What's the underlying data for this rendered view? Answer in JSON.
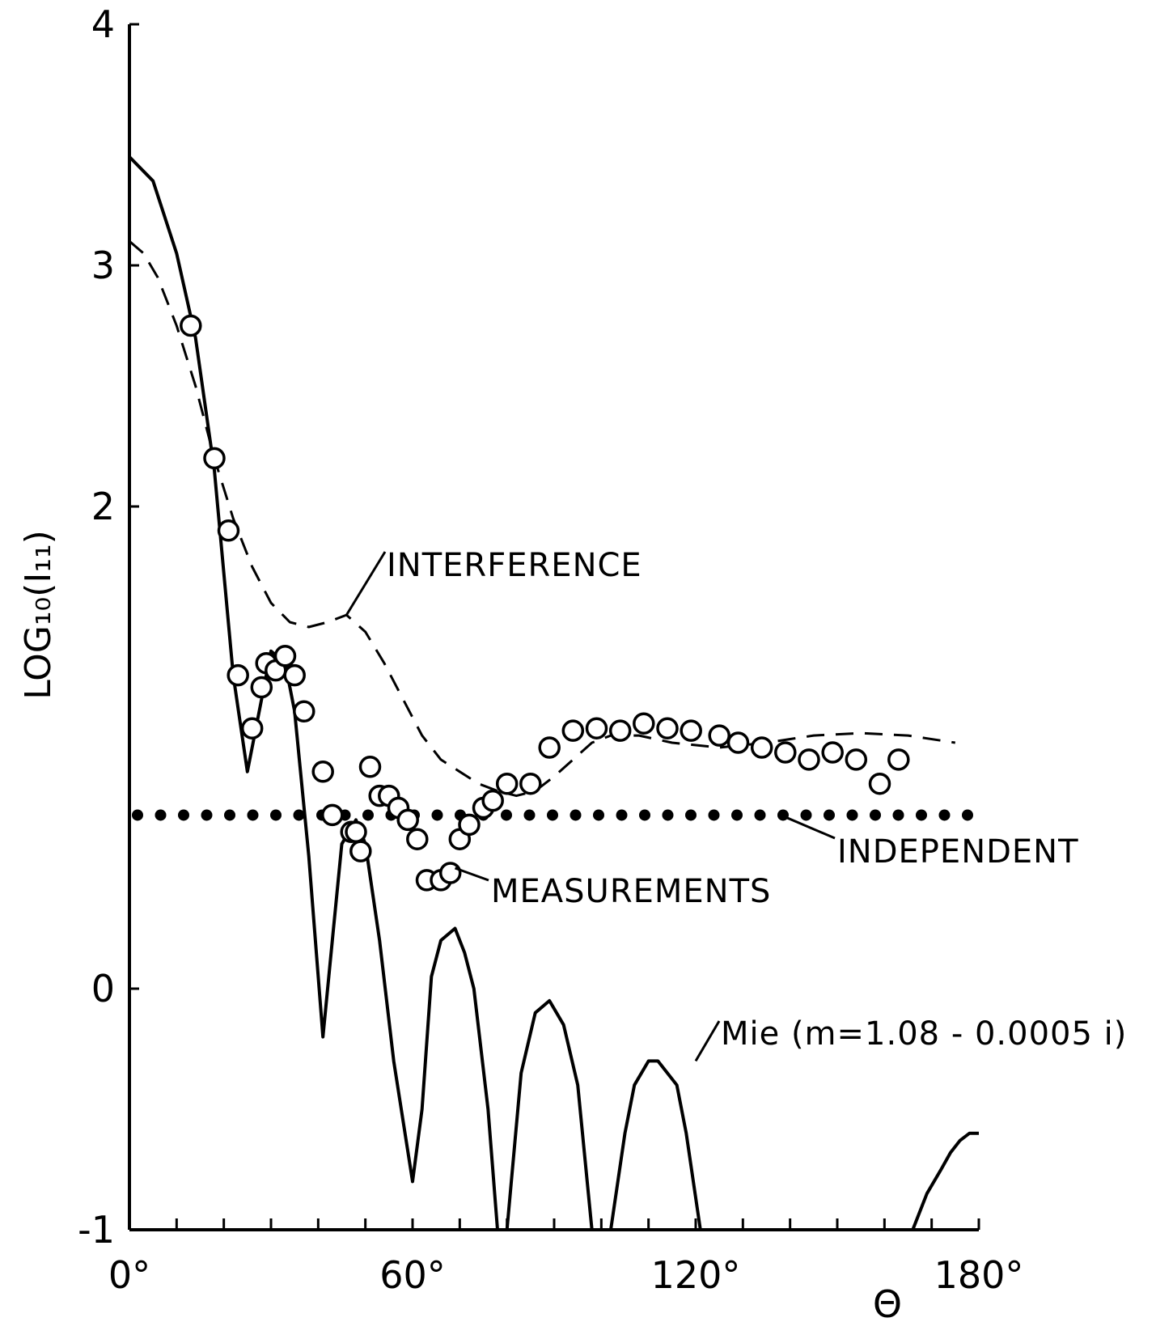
{
  "chart_data": {
    "type": "line",
    "title": "",
    "xlabel": "Θ",
    "ylabel": "LOG₁₀(I₁₁)",
    "xlim": [
      0,
      180
    ],
    "ylim": [
      -1,
      4
    ],
    "x_ticks": [
      {
        "value": 0,
        "label": "0°"
      },
      {
        "value": 60,
        "label": "60°"
      },
      {
        "value": 120,
        "label": "120°"
      },
      {
        "value": 180,
        "label": "180°"
      }
    ],
    "y_ticks": [
      {
        "value": -1,
        "label": "-1"
      },
      {
        "value": 0,
        "label": "0"
      },
      {
        "value": 2,
        "label": "2"
      },
      {
        "value": 3,
        "label": "3"
      },
      {
        "value": 4,
        "label": "4"
      }
    ],
    "grid": false,
    "series": [
      {
        "name": "Mie (m=1.08 - 0.0005 i)",
        "style": "solid",
        "x": [
          0,
          5,
          10,
          14,
          18,
          22,
          25,
          27,
          30,
          33,
          35,
          38,
          41,
          43,
          45,
          48,
          50,
          53,
          56,
          60,
          62,
          64,
          66,
          69,
          71,
          73,
          76,
          78,
          80,
          83,
          86,
          89,
          92,
          95,
          98,
          100,
          102,
          105,
          107,
          110,
          112,
          116,
          118,
          121,
          124,
          127,
          130,
          133,
          166,
          169,
          172,
          174,
          176,
          178,
          180
        ],
        "y": [
          3.45,
          3.35,
          3.05,
          2.7,
          2.15,
          1.3,
          0.9,
          1.1,
          1.4,
          1.35,
          1.15,
          0.55,
          -0.2,
          0.2,
          0.6,
          0.7,
          0.6,
          0.2,
          -0.3,
          -0.8,
          -0.5,
          0.05,
          0.2,
          0.25,
          0.15,
          0.0,
          -0.5,
          -1.0,
          -1.0,
          -0.35,
          -0.1,
          -0.05,
          -0.15,
          -0.4,
          -1.0,
          -1.0,
          -1.0,
          -0.6,
          -0.4,
          -0.3,
          -0.3,
          -0.4,
          -0.6,
          -1.0,
          -1.0,
          -1.0,
          -1.0,
          -1.0,
          -1.0,
          -0.85,
          -0.75,
          -0.68,
          -0.63,
          -0.6,
          -0.6
        ]
      },
      {
        "name": "INTERFERENCE",
        "style": "dashed",
        "x": [
          0,
          3,
          6,
          10,
          14,
          18,
          22,
          26,
          30,
          34,
          38,
          42,
          46,
          50,
          54,
          58,
          62,
          66,
          70,
          74,
          78,
          82,
          86,
          90,
          94,
          98,
          102,
          108,
          115,
          125,
          135,
          145,
          155,
          165,
          175
        ],
        "y": [
          3.1,
          3.05,
          2.95,
          2.75,
          2.5,
          2.2,
          1.95,
          1.75,
          1.6,
          1.52,
          1.5,
          1.52,
          1.55,
          1.48,
          1.35,
          1.2,
          1.05,
          0.95,
          0.9,
          0.85,
          0.82,
          0.8,
          0.82,
          0.88,
          0.95,
          1.02,
          1.05,
          1.05,
          1.02,
          1.0,
          1.02,
          1.05,
          1.06,
          1.05,
          1.02
        ]
      },
      {
        "name": "INDEPENDENT",
        "style": "dotted",
        "x": [
          0,
          180
        ],
        "y": [
          0.72,
          0.72
        ]
      }
    ],
    "measurements": {
      "name": "MEASUREMENTS",
      "x": [
        13,
        18,
        21,
        23,
        26,
        28,
        29,
        31,
        33,
        35,
        37,
        41,
        43,
        47,
        48,
        49,
        51,
        53,
        55,
        57,
        59,
        61,
        63,
        66,
        68,
        70,
        72,
        75,
        77,
        80,
        85,
        89,
        94,
        99,
        104,
        109,
        114,
        119,
        125,
        129,
        134,
        139,
        144,
        149,
        154,
        159,
        163
      ],
      "y": [
        2.75,
        2.2,
        1.9,
        1.3,
        1.08,
        1.25,
        1.35,
        1.32,
        1.38,
        1.3,
        1.15,
        0.9,
        0.72,
        0.65,
        0.65,
        0.57,
        0.92,
        0.8,
        0.8,
        0.75,
        0.7,
        0.62,
        0.45,
        0.45,
        0.48,
        0.62,
        0.68,
        0.75,
        0.78,
        0.85,
        0.85,
        1.0,
        1.07,
        1.08,
        1.07,
        1.1,
        1.08,
        1.07,
        1.05,
        1.02,
        1.0,
        0.98,
        0.95,
        0.98,
        0.95,
        0.85,
        0.95
      ]
    },
    "annotations": [
      {
        "text": "INTERFERENCE",
        "target_series": "INTERFERENCE"
      },
      {
        "text": "INDEPENDENT",
        "target_series": "INDEPENDENT"
      },
      {
        "text": "MEASUREMENTS",
        "target_series": "MEASUREMENTS"
      },
      {
        "text": "Mie (m=1.08 - 0.0005 i)",
        "target_series": "Mie (m=1.08 - 0.0005 i)"
      }
    ]
  }
}
